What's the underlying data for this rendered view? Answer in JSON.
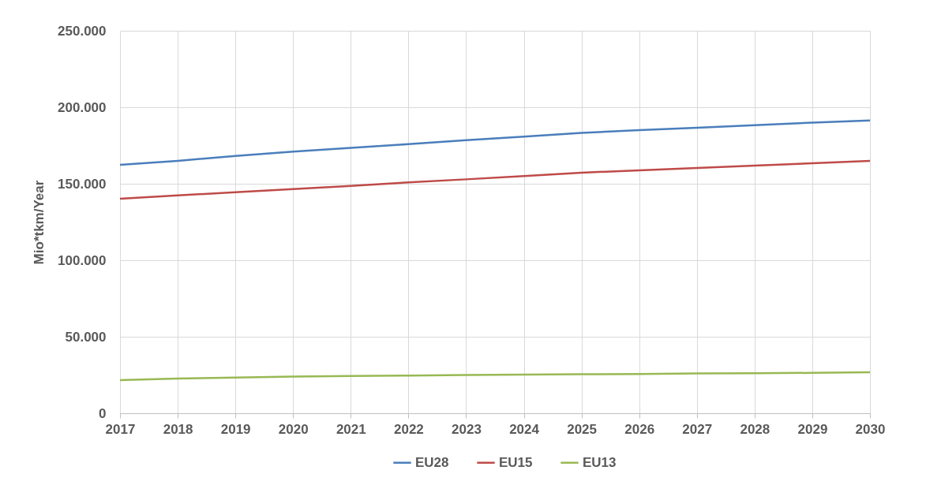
{
  "chart_data": {
    "type": "line",
    "ylabel": "Mio*tkm/Year",
    "x": [
      2017,
      2018,
      2019,
      2020,
      2021,
      2022,
      2023,
      2024,
      2025,
      2026,
      2027,
      2028,
      2029,
      2030
    ],
    "series": [
      {
        "name": "EU28",
        "color": "#4a7ebb",
        "values": [
          162400,
          165000,
          168200,
          171000,
          173400,
          175900,
          178500,
          180800,
          183300,
          185000,
          186600,
          188300,
          190000,
          191400
        ]
      },
      {
        "name": "EU15",
        "color": "#be4b48",
        "values": [
          140200,
          142400,
          144500,
          146500,
          148600,
          150900,
          152900,
          155000,
          157200,
          158800,
          160300,
          161900,
          163400,
          165000
        ]
      },
      {
        "name": "EU13",
        "color": "#98b954",
        "values": [
          21700,
          22700,
          23300,
          24000,
          24300,
          24600,
          25000,
          25300,
          25500,
          25600,
          26000,
          26100,
          26400,
          26800
        ]
      }
    ],
    "xlim": [
      2017,
      2030
    ],
    "xticks": [
      2017,
      2018,
      2019,
      2020,
      2021,
      2022,
      2023,
      2024,
      2025,
      2026,
      2027,
      2028,
      2029,
      2030
    ],
    "ylim": [
      0,
      250000
    ],
    "yticks": [
      0,
      {
        "value": 50000,
        "label": "50.000"
      },
      {
        "value": 100000,
        "label": "100.000"
      },
      {
        "value": 150000,
        "label": "150.000"
      },
      {
        "value": 200000,
        "label": "200.000"
      },
      {
        "value": 250000,
        "label": "250.000"
      }
    ],
    "grid": true,
    "legend": "bottom",
    "marker": "none",
    "line_style": "solid"
  }
}
